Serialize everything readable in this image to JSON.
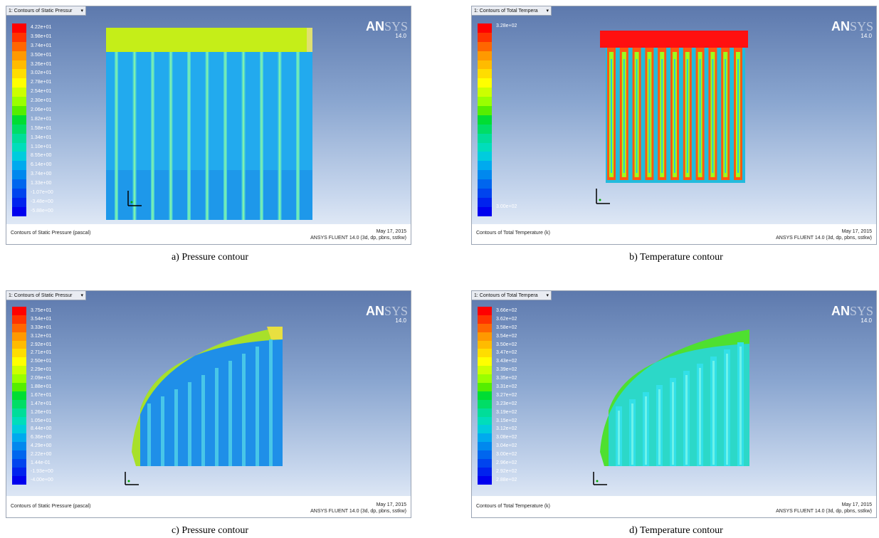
{
  "panels": {
    "a": {
      "tab_title": "1: Contours of Static Pressur",
      "legend": [
        "4.22e+01",
        "3.98e+01",
        "3.74e+01",
        "3.50e+01",
        "3.26e+01",
        "3.02e+01",
        "2.78e+01",
        "2.54e+01",
        "2.30e+01",
        "2.06e+01",
        "1.82e+01",
        "1.58e+01",
        "1.34e+01",
        "1.10e+01",
        "8.55e+00",
        "6.14e+00",
        "3.74e+00",
        "1.33e+00",
        "-1.07e+00",
        "-3.48e+00",
        "-5.88e+00"
      ],
      "footer_left": "Contours of Static Pressure (pascal)",
      "footer_date": "May 17, 2015",
      "footer_app": "ANSYS FLUENT 14.0 (3d, dp, pbns, sstkw)",
      "caption": "a) Pressure contour"
    },
    "b": {
      "tab_title": "1: Contours of Total Tempera",
      "legend_top": "3.28e+02",
      "legend_bottom": "3.00e+02",
      "footer_left": "Contours of Total Temperature (k)",
      "footer_date": "May 17, 2015",
      "footer_app": "ANSYS FLUENT 14.0 (3d, dp, pbns, sstkw)",
      "caption": "b) Temperature contour"
    },
    "c": {
      "tab_title": "1: Contours of Static Pressur",
      "legend": [
        "3.75e+01",
        "3.54e+01",
        "3.33e+01",
        "3.12e+01",
        "2.92e+01",
        "2.71e+01",
        "2.50e+01",
        "2.29e+01",
        "2.09e+01",
        "1.88e+01",
        "1.67e+01",
        "1.47e+01",
        "1.26e+01",
        "1.05e+01",
        "8.44e+00",
        "6.36e+00",
        "4.29e+00",
        "2.22e+00",
        "1.44e-01",
        "-1.93e+00",
        "-4.00e+00"
      ],
      "footer_left": "Contours of Static Pressure (pascal)",
      "footer_date": "May 17, 2015",
      "footer_app": "ANSYS FLUENT 14.0 (3d, dp, pbns, sstkw)",
      "caption": "c) Pressure contour"
    },
    "d": {
      "tab_title": "1: Contours of Total Tempera",
      "legend": [
        "3.66e+02",
        "3.62e+02",
        "3.58e+02",
        "3.54e+02",
        "3.50e+02",
        "3.47e+02",
        "3.43e+02",
        "3.39e+02",
        "3.35e+02",
        "3.31e+02",
        "3.27e+02",
        "3.23e+02",
        "3.19e+02",
        "3.15e+02",
        "3.12e+02",
        "3.08e+02",
        "3.04e+02",
        "3.00e+02",
        "2.96e+02",
        "2.92e+02",
        "2.88e+02"
      ],
      "footer_left": "Contours of Total Temperature (k)",
      "footer_date": "May 17, 2015",
      "footer_app": "ANSYS FLUENT 14.0 (3d, dp, pbns, sstkw)",
      "caption": "d) Temperature contour"
    }
  },
  "logo": {
    "an": "AN",
    "sys": "SYS",
    "version": "14.0"
  },
  "colorscale": [
    "#ff0000",
    "#ff3300",
    "#ff6600",
    "#ff9900",
    "#ffbb00",
    "#ffdd00",
    "#ffff00",
    "#ccff00",
    "#99ff00",
    "#55ee00",
    "#00dd33",
    "#00dd66",
    "#00dd99",
    "#00ddbb",
    "#00ccdd",
    "#00aaee",
    "#0088ee",
    "#0066ee",
    "#0044ee",
    "#0022ee",
    "#0000ee"
  ]
}
